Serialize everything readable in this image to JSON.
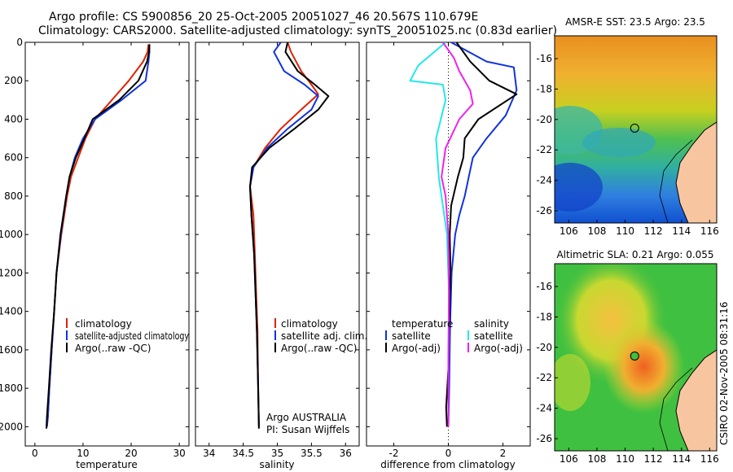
{
  "header": {
    "line1": "Argo profile: CS 5900856_20 25-Oct-2005 20051027_46 20.567S 110.679E",
    "line2": "Climatology: CARS2000. Satellite-adjusted climatology: synTS_20051025.nc (0.83d earlier)"
  },
  "colors": {
    "climatology": "#dd2200",
    "satellite": "#1133dd",
    "argo": "#000000",
    "sal_satellite": "#22e8e8",
    "sal_argo": "#ee22ee",
    "land": "#f7c6a0"
  },
  "chart_data": [
    {
      "id": "temperature",
      "type": "line",
      "xlabel": "temperature",
      "ylabel": "",
      "xlim": [
        -2,
        32
      ],
      "ylim": [
        2100,
        0
      ],
      "xticks": [
        0,
        10,
        20,
        30
      ],
      "xtick_labels": [
        "0",
        "10",
        "20",
        "30"
      ],
      "yticks": [
        0,
        200,
        400,
        600,
        800,
        1000,
        1200,
        1400,
        1600,
        1800,
        2000
      ],
      "ytick_labels": [
        "0",
        "200",
        "400",
        "600",
        "800",
        "1000",
        "1200",
        "1400",
        "1600",
        "1800",
        "2000"
      ],
      "legend": [
        "climatology",
        "satellite-adjusted climatology",
        "Argo(..raw -QC)"
      ],
      "series": [
        {
          "name": "climatology",
          "color_key": "climatology",
          "x": [
            23.6,
            23.4,
            22.5,
            19.5,
            16,
            12.5,
            10.5,
            9,
            7.5,
            6.7,
            5.5,
            4.5,
            4,
            3.5,
            3,
            2.7,
            2.5
          ],
          "y": [
            10,
            50,
            100,
            200,
            300,
            400,
            500,
            600,
            700,
            800,
            1000,
            1200,
            1400,
            1600,
            1800,
            1950,
            2000
          ]
        },
        {
          "name": "satellite-adjusted climatology",
          "color_key": "satellite",
          "x": [
            23.8,
            23.8,
            23.6,
            23,
            18,
            12.5,
            10,
            8.3,
            7.2,
            6.5,
            5.4,
            4.5,
            4,
            3.5,
            3,
            2.7,
            2.5
          ],
          "y": [
            10,
            50,
            100,
            200,
            300,
            400,
            500,
            600,
            700,
            800,
            1000,
            1200,
            1400,
            1600,
            1800,
            1950,
            2000
          ]
        },
        {
          "name": "Argo(..raw -QC)",
          "color_key": "argo",
          "x": [
            23.8,
            23.7,
            23.3,
            21.5,
            17.5,
            12,
            10.3,
            8.5,
            7.2,
            6.5,
            5.3,
            4.5,
            4,
            3.4,
            2.9,
            2.5,
            2.4
          ],
          "y": [
            10,
            50,
            100,
            200,
            300,
            400,
            500,
            600,
            700,
            800,
            1000,
            1200,
            1400,
            1600,
            1800,
            1950,
            2010
          ]
        }
      ]
    },
    {
      "id": "salinity",
      "type": "line",
      "xlabel": "salinity",
      "ylabel": "",
      "xlim": [
        33.8,
        36.2
      ],
      "ylim": [
        2100,
        0
      ],
      "xticks": [
        34,
        34.5,
        35,
        35.5,
        36
      ],
      "xtick_labels": [
        "34",
        "34.5",
        "35",
        "35.5",
        "36"
      ],
      "legend": [
        "climatology",
        "satellite adj. clim.",
        "Argo(..raw -QC)"
      ],
      "annotations": [
        "Argo AUSTRALIA",
        "PI: Susan Wijffels"
      ],
      "series": [
        {
          "name": "climatology",
          "color_key": "climatology",
          "x": [
            35.15,
            35.2,
            35.35,
            35.5,
            35.6,
            35.35,
            35.05,
            34.82,
            34.65,
            34.6,
            34.65,
            34.67,
            34.69,
            34.71,
            34.72,
            34.73
          ],
          "y": [
            0,
            50,
            150,
            220,
            270,
            350,
            450,
            550,
            650,
            750,
            900,
            1100,
            1300,
            1500,
            1800,
            2000
          ]
        },
        {
          "name": "satellite adj. clim.",
          "color_key": "satellite",
          "x": [
            35.05,
            34.95,
            35.1,
            35.4,
            35.6,
            35.5,
            35.15,
            34.85,
            34.65,
            34.6,
            34.62,
            34.66,
            34.68,
            34.7,
            34.72,
            34.73
          ],
          "y": [
            0,
            50,
            150,
            220,
            280,
            350,
            450,
            550,
            650,
            750,
            900,
            1100,
            1300,
            1500,
            1800,
            2000
          ]
        },
        {
          "name": "Argo(..raw -QC)",
          "color_key": "argo",
          "x": [
            35.15,
            35.12,
            35.3,
            35.55,
            35.75,
            35.6,
            35.25,
            34.88,
            34.63,
            34.6,
            34.62,
            34.66,
            34.68,
            34.7,
            34.72,
            34.73
          ],
          "y": [
            0,
            50,
            150,
            220,
            280,
            350,
            450,
            550,
            650,
            750,
            900,
            1100,
            1300,
            1500,
            1800,
            2010
          ]
        }
      ]
    },
    {
      "id": "difference",
      "type": "line",
      "xlabel": "difference from climatology",
      "ylabel": "",
      "xlim": [
        -3,
        3
      ],
      "ylim": [
        2100,
        0
      ],
      "xticks": [
        -2,
        0,
        2
      ],
      "xtick_labels": [
        "-2",
        "0",
        "2"
      ],
      "legend_groups": [
        {
          "header": "temperature",
          "items": [
            "satellite",
            "Argo(-adj)"
          ]
        },
        {
          "header": "salinity",
          "items": [
            "satellite",
            "Argo(-adj)"
          ]
        }
      ],
      "series": [
        {
          "name": "temperature satellite",
          "color_key": "satellite",
          "x": [
            0.1,
            1.4,
            2.4,
            2.5,
            2.1,
            1.4,
            0.9,
            0.75,
            0.6,
            0.4,
            0.25,
            0.12,
            0.06,
            0.03,
            0.0
          ],
          "y": [
            0,
            100,
            130,
            250,
            380,
            500,
            600,
            700,
            800,
            900,
            1000,
            1200,
            1500,
            1800,
            2000
          ]
        },
        {
          "name": "temperature Argo(-adj)",
          "color_key": "argo",
          "x": [
            0.3,
            0.8,
            1.5,
            2.5,
            1.1,
            0.6,
            0.55,
            0.35,
            0.1,
            0.05,
            0.08,
            0.02,
            0.0,
            -0.08,
            -0.05
          ],
          "y": [
            0,
            100,
            200,
            270,
            400,
            500,
            600,
            700,
            850,
            1000,
            1200,
            1500,
            1700,
            1900,
            2000
          ]
        },
        {
          "name": "salinity satellite",
          "color_key": "sal_satellite",
          "x": [
            -0.1,
            -0.6,
            -1.1,
            -1.4,
            -0.2,
            -0.1,
            -0.45,
            -0.35,
            -0.25,
            -0.05,
            0.02,
            0.0,
            0.0
          ],
          "y": [
            0,
            60,
            120,
            200,
            220,
            300,
            500,
            700,
            800,
            1000,
            1300,
            1700,
            2000
          ]
        },
        {
          "name": "salinity Argo(-adj)",
          "color_key": "sal_argo",
          "x": [
            -0.2,
            0.2,
            0.4,
            0.8,
            0.9,
            0.4,
            -0.1,
            -0.25,
            -0.1,
            0.0,
            0.02,
            0.0,
            0.0
          ],
          "y": [
            0,
            80,
            150,
            250,
            320,
            400,
            550,
            700,
            800,
            1000,
            1300,
            1700,
            2000
          ]
        }
      ]
    }
  ],
  "maps": [
    {
      "id": "sst",
      "title": "AMSR-E SST: 23.5 Argo: 23.5",
      "xlim": [
        105,
        116.5
      ],
      "ylim": [
        -26.8,
        -14.5
      ],
      "xticks": [
        106,
        108,
        110,
        112,
        114,
        116
      ],
      "yticks": [
        -16,
        -18,
        -20,
        -22,
        -24,
        -26
      ],
      "marker": {
        "lon": 110.679,
        "lat": -20.567
      }
    },
    {
      "id": "sla",
      "title": "Altimetric SLA: 0.21 Argo: 0.055",
      "xlim": [
        105,
        116.5
      ],
      "ylim": [
        -26.8,
        -14.5
      ],
      "xticks": [
        106,
        108,
        110,
        112,
        114,
        116
      ],
      "yticks": [
        -16,
        -18,
        -20,
        -22,
        -24,
        -26
      ],
      "marker": {
        "lon": 110.679,
        "lat": -20.567
      }
    }
  ],
  "credit": "CSIRO 02-Nov-2005 08:31:16"
}
